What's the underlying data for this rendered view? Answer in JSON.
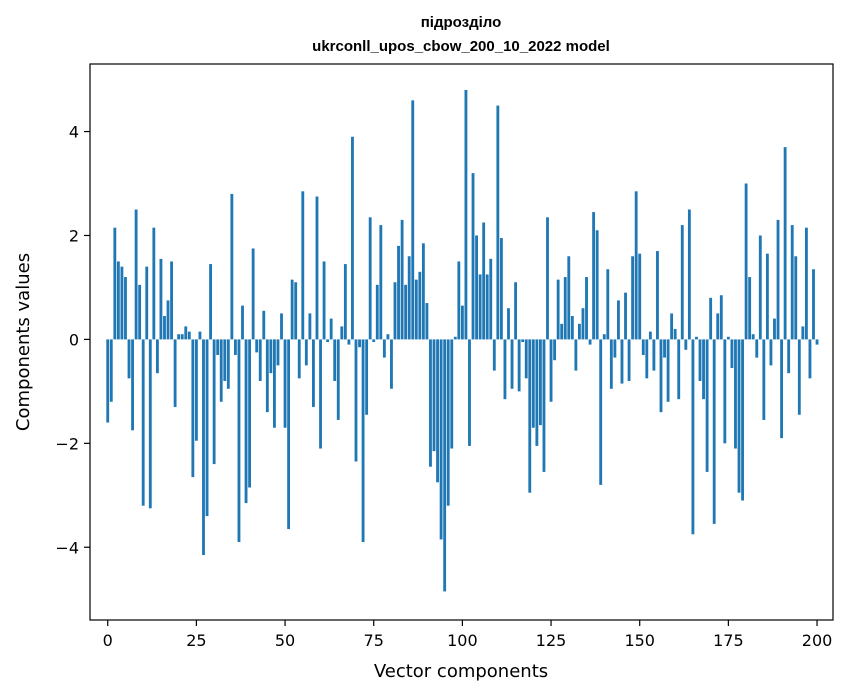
{
  "chart_data": {
    "type": "bar",
    "title": "підрозділо",
    "subtitle": "ukrconll_upos_cbow_200_10_2022 model",
    "xlabel": "Vector components",
    "ylabel": "Components values",
    "xlim": [
      -5,
      204.5
    ],
    "ylim": [
      -5.4,
      5.3
    ],
    "xticks": [
      0,
      25,
      50,
      75,
      100,
      125,
      150,
      175,
      200
    ],
    "yticks": [
      -4,
      -2,
      0,
      2,
      4
    ],
    "ytick_labels": [
      "−4",
      "−2",
      "0",
      "2",
      "4"
    ],
    "bar_color": "#1f77b4",
    "values": [
      -1.6,
      -1.2,
      2.15,
      1.5,
      1.4,
      1.2,
      -0.75,
      -1.75,
      2.5,
      1.05,
      -3.2,
      1.4,
      -3.25,
      2.15,
      -0.65,
      1.55,
      0.45,
      0.75,
      1.5,
      -1.3,
      0.1,
      0.1,
      0.25,
      0.15,
      -2.65,
      -1.95,
      0.15,
      -4.15,
      -3.4,
      1.45,
      -2.4,
      -0.3,
      -1.2,
      -0.8,
      -0.95,
      2.8,
      -0.3,
      -3.9,
      0.65,
      -3.15,
      -2.85,
      1.75,
      -0.25,
      -0.8,
      0.55,
      -1.4,
      -0.65,
      -1.7,
      -0.5,
      0.5,
      -1.7,
      -3.65,
      1.15,
      1.1,
      -0.75,
      2.85,
      -0.5,
      0.5,
      -1.3,
      2.75,
      -2.1,
      1.5,
      -0.05,
      0.4,
      -0.8,
      -1.55,
      0.25,
      1.45,
      -0.1,
      3.9,
      -2.35,
      -0.15,
      -3.9,
      -1.45,
      2.35,
      -0.05,
      1.05,
      2.2,
      -0.35,
      0.1,
      -0.95,
      1.1,
      1.8,
      2.3,
      1.05,
      1.6,
      4.6,
      1.15,
      1.3,
      1.85,
      0.7,
      -2.45,
      -2.15,
      -2.75,
      -3.85,
      -4.85,
      -3.2,
      -2.1,
      0.05,
      1.5,
      0.65,
      4.8,
      -2.05,
      3.2,
      2.0,
      1.25,
      2.25,
      1.25,
      1.55,
      -0.6,
      4.5,
      1.95,
      -1.15,
      0.6,
      -0.95,
      1.1,
      -1.0,
      -0.05,
      -0.75,
      -2.95,
      -1.7,
      -2.05,
      -1.65,
      -2.55,
      2.35,
      -1.2,
      -0.4,
      1.15,
      0.3,
      1.2,
      1.6,
      0.45,
      -0.6,
      0.3,
      0.6,
      1.2,
      -0.1,
      2.45,
      2.1,
      -2.8,
      0.1,
      1.35,
      -0.95,
      -0.35,
      0.75,
      -0.85,
      0.9,
      -0.8,
      1.6,
      2.85,
      1.65,
      -0.3,
      -0.75,
      0.15,
      -0.6,
      1.7,
      -1.4,
      -0.35,
      -1.2,
      0.5,
      0.2,
      -1.15,
      2.2,
      -0.2,
      2.5,
      -3.75,
      0.05,
      -0.8,
      -1.15,
      -2.55,
      0.8,
      -3.55,
      0.5,
      0.85,
      -2.0,
      0.05,
      -0.55,
      -2.1,
      -2.95,
      -3.1,
      3.0,
      1.2,
      0.1,
      -0.35,
      2.0,
      -1.55,
      1.65,
      -0.5,
      0.4,
      2.3,
      -1.9,
      3.7,
      -0.65,
      2.2,
      1.6,
      -1.45,
      0.25,
      2.15,
      -0.75,
      1.35,
      -0.1
    ]
  }
}
